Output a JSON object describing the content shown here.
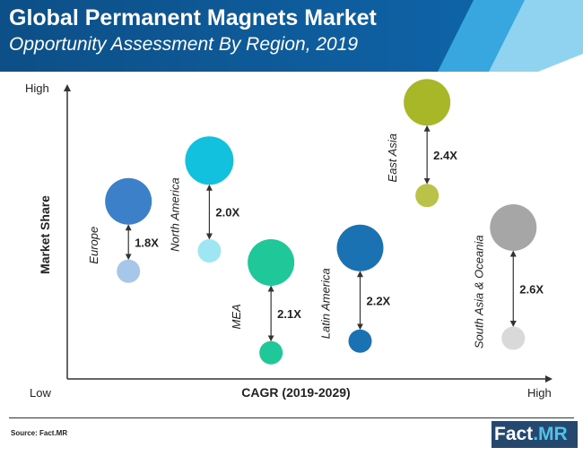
{
  "header": {
    "title": "Global Permanent Magnets Market",
    "subtitle": "Opportunity Assessment By Region, 2019"
  },
  "chart_data": {
    "type": "bubble",
    "title": "Global Permanent Magnets Market",
    "subtitle": "Opportunity Assessment By Region, 2019",
    "xlabel": "CAGR (2019-2029)",
    "ylabel": "Market Share",
    "x_ticks": {
      "low": "Low",
      "high": "High"
    },
    "y_ticks": {
      "low": "Low",
      "high": "High"
    },
    "xlim": [
      0,
      100
    ],
    "ylim": [
      0,
      100
    ],
    "series": [
      {
        "name": "Europe",
        "ratio": "1.8X",
        "x": 12.7,
        "y_2019": 61,
        "y_2029": 37,
        "size_2019": 26,
        "size_2029": 13,
        "color_2019": "#3b80c8",
        "color_2029": "#a7c7e8"
      },
      {
        "name": "North America",
        "ratio": "2.0X",
        "x": 29.5,
        "y_2019": 75,
        "y_2029": 44,
        "size_2019": 27,
        "size_2029": 13,
        "color_2019": "#12c1de",
        "color_2029": "#9ee6f3"
      },
      {
        "name": "MEA",
        "ratio": "2.1X",
        "x": 42.3,
        "y_2019": 40,
        "y_2029": 9,
        "size_2019": 26,
        "size_2029": 13,
        "color_2019": "#20c899",
        "color_2029": "#20c899"
      },
      {
        "name": "Latin America",
        "ratio": "2.2X",
        "x": 60.8,
        "y_2019": 45,
        "y_2029": 13,
        "size_2019": 26,
        "size_2029": 13,
        "color_2019": "#1b72b2",
        "color_2029": "#1b72b2"
      },
      {
        "name": "East Asia",
        "ratio": "2.4X",
        "x": 74.7,
        "y_2019": 95,
        "y_2029": 63,
        "size_2019": 26,
        "size_2029": 13,
        "color_2019": "#a8b727",
        "color_2029": "#bac24a"
      },
      {
        "name": "South Asia & Oceania",
        "ratio": "2.6X",
        "x": 92.6,
        "y_2019": 52,
        "y_2029": 14,
        "size_2019": 26,
        "size_2029": 13,
        "color_2019": "#a6a6a6",
        "color_2029": "#d9d9d9"
      }
    ]
  },
  "footer": {
    "source": "Source: Fact.MR",
    "logo_main": "Fact",
    "logo_dot": ".",
    "logo_mr": "MR"
  },
  "colors": {
    "banner_dark": "#0c5c9b",
    "banner_mid": "#2b98d6",
    "banner_light": "#66c2ec",
    "logo_bg": "#27486e",
    "logo_accent": "#4fc3e8",
    "arrow": "#333333"
  }
}
